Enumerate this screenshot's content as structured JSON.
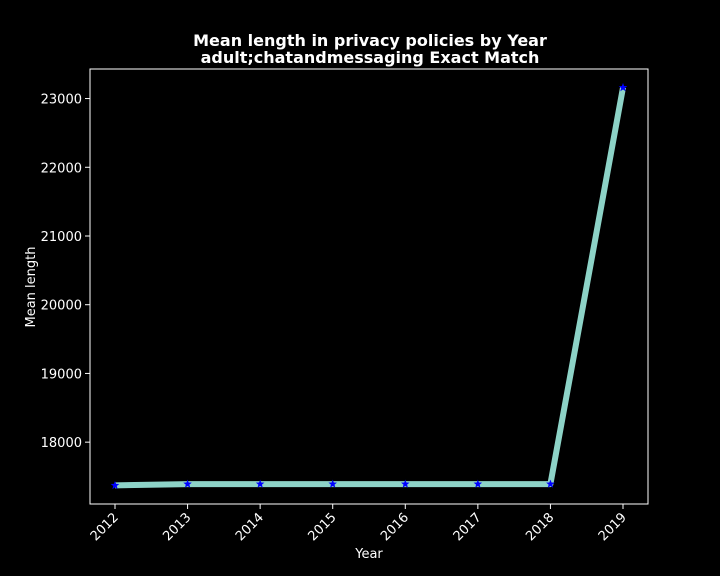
{
  "chart_data": {
    "type": "line",
    "title": "Mean length in privacy policies by Year",
    "subtitle": "adult;chatandmessaging Exact Match",
    "xlabel": "Year",
    "ylabel": "Mean length",
    "categories": [
      "2012",
      "2013",
      "2014",
      "2015",
      "2016",
      "2017",
      "2018",
      "2019"
    ],
    "series": [
      {
        "values": [
          17370,
          17390,
          17390,
          17390,
          17390,
          17390,
          17390,
          23160
        ]
      }
    ],
    "ylim": [
      17100,
      23430
    ],
    "yticks": [
      18000,
      19000,
      20000,
      21000,
      22000,
      23000
    ],
    "grid": false,
    "line_color": "#8dd3c7",
    "marker_color": "#0000ff",
    "marker": "star",
    "background": "#000000",
    "text_color": "#ffffff"
  }
}
